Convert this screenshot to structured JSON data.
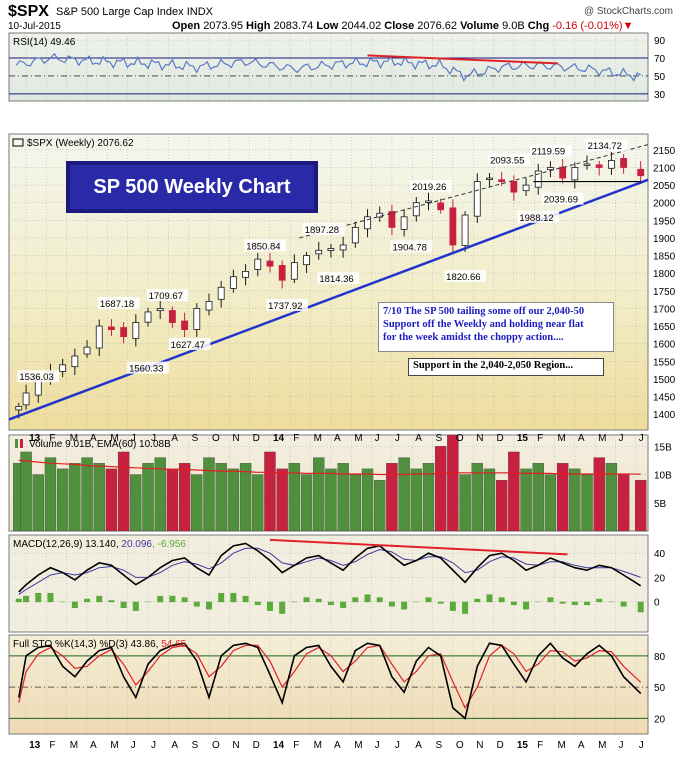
{
  "header": {
    "ticker": "$SPX",
    "index_name": "S&P 500 Large Cap Index",
    "exchange": "INDX",
    "credit": "@ StockCharts.com",
    "date": "10-Jul-2015",
    "open_label": "Open",
    "open": "2073.95",
    "high_label": "High",
    "high": "2083.74",
    "low_label": "Low",
    "low": "2044.02",
    "close_label": "Close",
    "close": "2076.62",
    "volume_label": "Volume",
    "volume": "9.0B",
    "chg_label": "Chg",
    "chg": "-0.16 (-0.01%)"
  },
  "annotations": {
    "title_box": "SP 500 Weekly Chart",
    "note_lines": [
      "7/10  The SP 500 tailing some off our 2,040-50",
      "Support off the Weekly and holding near flat",
      "for the week amidst the choppy action...."
    ],
    "support_box": "Support in the 2,040-2,050 Region..."
  },
  "colors": {
    "panel_bg": "#f1eee1",
    "grid": "#b7b7b7",
    "up_bar": "#4f8f3d",
    "down_bar": "#c8203f",
    "trendline": "#2233cc",
    "resistance": "#e0202a",
    "rsi_line": "#5a78c8",
    "macd_line": "#000000",
    "signal_line": "#3a3aa0",
    "stoch_k": "#000000",
    "stoch_d": "#e0202a",
    "histogram": "#5caa3c"
  },
  "chart_data": [
    {
      "type": "line",
      "panel": "rsi",
      "legend": "RSI(14) 49.46",
      "ylim": [
        22,
        98
      ],
      "y_ticks": [
        "90",
        "70",
        "50",
        "30"
      ],
      "reference_lines": [
        70,
        30
      ],
      "x": [
        2012.96,
        2013.1,
        2013.3,
        2013.5,
        2013.7,
        2013.9,
        2014.1,
        2014.3,
        2014.5,
        2014.7,
        2014.8,
        2014.95,
        2015.1,
        2015.3,
        2015.52
      ],
      "values": [
        62,
        70,
        66,
        64,
        60,
        66,
        58,
        64,
        66,
        62,
        50,
        60,
        62,
        58,
        49.46
      ],
      "resistance_line": {
        "x": [
          2014.4,
          2015.18
        ],
        "y": [
          73,
          64
        ]
      }
    },
    {
      "type": "candlestick",
      "panel": "price",
      "legend": "$SPX (Weekly) 2076.62",
      "ylim": [
        1355,
        2195
      ],
      "y_ticks": [
        "2150",
        "2100",
        "2050",
        "2000",
        "1950",
        "1900",
        "1850",
        "1800",
        "1750",
        "1700",
        "1650",
        "1600",
        "1550",
        "1500",
        "1450",
        "1400"
      ],
      "x_labels": [
        "F",
        "M",
        "A",
        "M",
        "J",
        "J",
        "A",
        "S",
        "O",
        "N",
        "D",
        "14",
        "F",
        "M",
        "A",
        "M",
        "J",
        "J",
        "A",
        "S",
        "O",
        "N",
        "D",
        "15",
        "F",
        "M",
        "A",
        "M",
        "J",
        "J"
      ],
      "x": [
        2012.97,
        2013.0,
        2013.05,
        2013.1,
        2013.15,
        2013.2,
        2013.25,
        2013.3,
        2013.35,
        2013.4,
        2013.45,
        2013.5,
        2013.55,
        2013.6,
        2013.65,
        2013.7,
        2013.75,
        2013.8,
        2013.85,
        2013.9,
        2013.95,
        2014.0,
        2014.05,
        2014.1,
        2014.15,
        2014.2,
        2014.25,
        2014.3,
        2014.35,
        2014.4,
        2014.45,
        2014.5,
        2014.55,
        2014.6,
        2014.65,
        2014.7,
        2014.75,
        2014.8,
        2014.85,
        2014.9,
        2014.95,
        2015.0,
        2015.05,
        2015.1,
        2015.15,
        2015.2,
        2015.25,
        2015.3,
        2015.35,
        2015.4,
        2015.45,
        2015.52
      ],
      "close": [
        1422,
        1460,
        1500,
        1520,
        1540,
        1565,
        1590,
        1650,
        1640,
        1620,
        1660,
        1690,
        1700,
        1660,
        1640,
        1700,
        1720,
        1760,
        1790,
        1805,
        1840,
        1820,
        1780,
        1830,
        1850,
        1865,
        1870,
        1880,
        1930,
        1960,
        1970,
        1930,
        1960,
        2000,
        2005,
        1980,
        1880,
        1965,
        2060,
        2070,
        2060,
        2030,
        2050,
        2090,
        2100,
        2070,
        2100,
        2110,
        2100,
        2120,
        2100,
        2076.62
      ],
      "labels": [
        {
          "text": "1536.03",
          "x": 2013.05,
          "y": 1536.03
        },
        {
          "text": "1560.33",
          "x": 2013.5,
          "y": 1560.33
        },
        {
          "text": "1687.18",
          "x": 2013.38,
          "y": 1687.18
        },
        {
          "text": "1709.67",
          "x": 2013.58,
          "y": 1709.67
        },
        {
          "text": "1627.47",
          "x": 2013.67,
          "y": 1627.47
        },
        {
          "text": "1737.92",
          "x": 2014.07,
          "y": 1737.92
        },
        {
          "text": "1850.84",
          "x": 2013.98,
          "y": 1850.84
        },
        {
          "text": "1814.36",
          "x": 2014.28,
          "y": 1814.36
        },
        {
          "text": "1897.28",
          "x": 2014.22,
          "y": 1897.28
        },
        {
          "text": "1904.78",
          "x": 2014.58,
          "y": 1904.78
        },
        {
          "text": "2019.26",
          "x": 2014.66,
          "y": 2019.26
        },
        {
          "text": "1820.66",
          "x": 2014.8,
          "y": 1820.66
        },
        {
          "text": "2093.55",
          "x": 2014.98,
          "y": 2093.55
        },
        {
          "text": "1988.12",
          "x": 2015.1,
          "y": 1988.12
        },
        {
          "text": "2119.59",
          "x": 2015.15,
          "y": 2119.59
        },
        {
          "text": "2039.69",
          "x": 2015.2,
          "y": 2039.69
        },
        {
          "text": "2134.72",
          "x": 2015.38,
          "y": 2134.72
        }
      ],
      "support_trendline": {
        "x": [
          2012.93,
          2015.55
        ],
        "y": [
          1385,
          2065
        ]
      },
      "upper_channel": {
        "x": [
          2014.12,
          2015.55
        ],
        "y": [
          1900,
          2165
        ]
      },
      "support_horizontal": {
        "x": [
          2015.08,
          2015.52
        ],
        "y": [
          2060,
          2060
        ]
      }
    },
    {
      "type": "bar",
      "panel": "volume",
      "legend": "Volume 9.01B, EMA(60) 10.08B",
      "ylim": [
        0,
        17
      ],
      "y_ticks": [
        "15B",
        "10B",
        "5B"
      ],
      "series": [
        {
          "name": "Volume",
          "values": [
            12,
            14,
            10,
            13,
            11,
            12,
            13,
            12,
            11,
            14,
            10,
            12,
            13,
            11,
            12,
            10,
            13,
            12,
            11,
            12,
            10,
            14,
            11,
            12,
            10,
            13,
            11,
            12,
            10,
            11,
            9,
            12,
            13,
            11,
            12,
            15,
            17,
            10,
            12,
            11,
            9,
            14,
            11,
            12,
            10,
            12,
            11,
            10,
            13,
            12,
            10,
            9.01
          ]
        },
        {
          "name": "EMA(60)",
          "values": [
            12.5,
            12.4,
            12.2,
            12.0,
            11.9,
            11.8,
            11.6,
            11.5,
            11.4,
            11.3,
            11.2,
            11.1,
            11.0,
            10.9,
            10.9,
            10.8,
            10.7,
            10.6,
            10.6,
            10.5,
            10.4,
            10.4,
            10.3,
            10.3,
            10.2,
            10.2,
            10.2,
            10.1,
            10.1,
            10.1,
            10.0,
            10.0,
            10.0,
            10.1,
            10.1,
            10.2,
            10.3,
            10.3,
            10.3,
            10.3,
            10.3,
            10.3,
            10.2,
            10.2,
            10.2,
            10.1,
            10.1,
            10.1,
            10.1,
            10.1,
            10.1,
            10.08
          ]
        }
      ]
    },
    {
      "type": "line",
      "panel": "macd",
      "legend": "MACD(12,26,9) 13.140, 20.096, -6.956",
      "legend_parts": [
        "MACD(12,26,9) 13.140, ",
        "20.096",
        ", -6.956"
      ],
      "ylim": [
        -25,
        55
      ],
      "y_ticks": [
        "40",
        "20",
        "0"
      ],
      "series": [
        {
          "name": "MACD",
          "values": [
            8,
            14,
            22,
            28,
            24,
            18,
            26,
            32,
            30,
            22,
            14,
            20,
            28,
            34,
            36,
            28,
            22,
            38,
            46,
            48,
            42,
            34,
            24,
            30,
            36,
            38,
            32,
            26,
            36,
            44,
            46,
            38,
            30,
            34,
            40,
            36,
            26,
            16,
            28,
            38,
            40,
            34,
            26,
            30,
            36,
            32,
            28,
            26,
            30,
            28,
            22,
            13.14
          ]
        },
        {
          "name": "Signal",
          "values": [
            6,
            10,
            16,
            22,
            24,
            22,
            24,
            28,
            29,
            26,
            20,
            20,
            24,
            30,
            33,
            31,
            27,
            32,
            40,
            44,
            44,
            40,
            32,
            30,
            33,
            36,
            34,
            30,
            33,
            39,
            43,
            41,
            35,
            34,
            37,
            37,
            32,
            24,
            26,
            33,
            37,
            36,
            31,
            30,
            33,
            33,
            30,
            28,
            28,
            28,
            25,
            20.096
          ]
        }
      ],
      "resistance_line": {
        "x": [
          2014.0,
          2015.22
        ],
        "y": [
          51,
          39
        ]
      }
    },
    {
      "type": "line",
      "panel": "stochastic",
      "legend": "Full STO %K(14,3) %D(3) 43.86, 54.65",
      "legend_parts": [
        "Full STO %K(14,3) %D(3) 43.86, ",
        "54.65"
      ],
      "ylim": [
        5,
        100
      ],
      "y_ticks": [
        "80",
        "50",
        "20"
      ],
      "reference_lines": [
        80,
        20
      ],
      "series": [
        {
          "name": "%K",
          "values": [
            40,
            80,
            88,
            90,
            70,
            60,
            75,
            85,
            88,
            60,
            40,
            72,
            85,
            90,
            92,
            75,
            40,
            80,
            90,
            92,
            88,
            62,
            35,
            80,
            88,
            90,
            70,
            55,
            85,
            92,
            90,
            60,
            45,
            75,
            88,
            80,
            30,
            20,
            70,
            92,
            90,
            72,
            55,
            80,
            92,
            78,
            70,
            82,
            90,
            80,
            60,
            43.86
          ]
        },
        {
          "name": "%D",
          "values": [
            35,
            65,
            82,
            88,
            80,
            68,
            70,
            80,
            86,
            72,
            52,
            65,
            80,
            88,
            90,
            82,
            60,
            70,
            85,
            90,
            90,
            75,
            50,
            65,
            82,
            88,
            80,
            65,
            75,
            88,
            90,
            72,
            55,
            65,
            80,
            82,
            55,
            30,
            50,
            80,
            90,
            82,
            65,
            72,
            85,
            84,
            75,
            78,
            85,
            84,
            70,
            54.65
          ]
        }
      ]
    }
  ],
  "x_axis_labels": [
    "13",
    "F",
    "M",
    "A",
    "M",
    "J",
    "J",
    "A",
    "S",
    "O",
    "N",
    "D",
    "14",
    "F",
    "M",
    "A",
    "M",
    "J",
    "J",
    "A",
    "S",
    "O",
    "N",
    "D",
    "15",
    "F",
    "M",
    "A",
    "M",
    "J",
    "J"
  ]
}
